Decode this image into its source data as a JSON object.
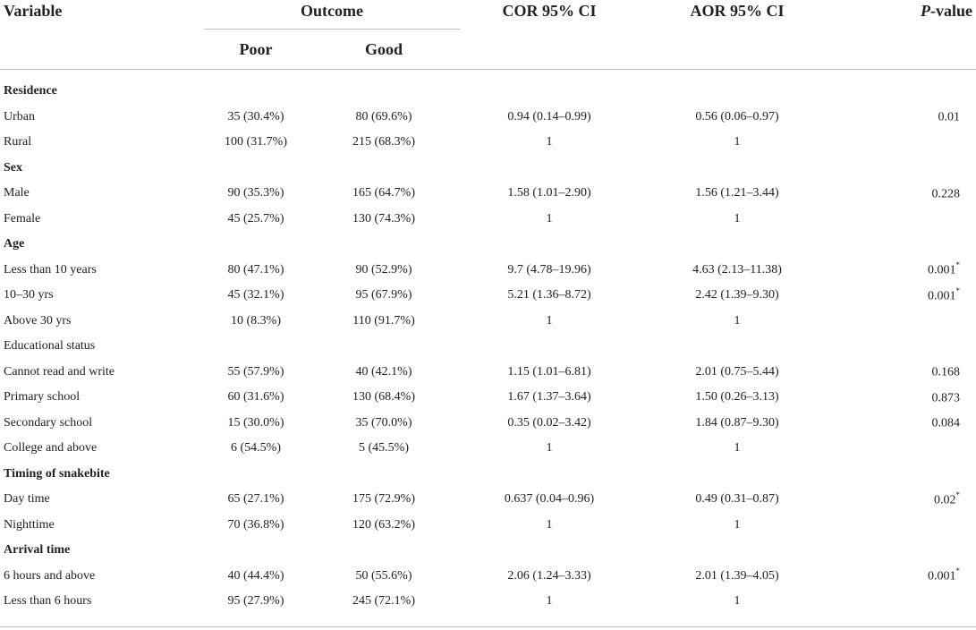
{
  "table": {
    "header": {
      "variable": "Variable",
      "outcome": "Outcome",
      "poor": "Poor",
      "good": "Good",
      "cor": "COR 95% CI",
      "aor": "AOR 95% CI",
      "p_italic": "P",
      "p_rest": "-value"
    },
    "rows": [
      {
        "var": "Residence",
        "poor": "",
        "good": "",
        "cor": "",
        "aor": "",
        "p": "",
        "sup": "",
        "group": true
      },
      {
        "var": "Urban",
        "poor": "35 (30.4%)",
        "good": "80 (69.6%)",
        "cor": "0.94 (0.14–0.99)",
        "aor": "0.56 (0.06–0.97)",
        "p": "0.01",
        "sup": ""
      },
      {
        "var": "Rural",
        "poor": "100 (31.7%)",
        "good": "215 (68.3%)",
        "cor": "1",
        "aor": "1",
        "p": "",
        "sup": ""
      },
      {
        "var": "Sex",
        "poor": "",
        "good": "",
        "cor": "",
        "aor": "",
        "p": "",
        "sup": "",
        "group": true
      },
      {
        "var": "Male",
        "poor": "90 (35.3%)",
        "good": "165 (64.7%)",
        "cor": "1.58 (1.01–2.90)",
        "aor": "1.56 (1.21–3.44)",
        "p": "0.228",
        "sup": ""
      },
      {
        "var": "Female",
        "poor": "45 (25.7%)",
        "good": "130 (74.3%)",
        "cor": "1",
        "aor": "1",
        "p": "",
        "sup": ""
      },
      {
        "var": "Age",
        "poor": "",
        "good": "",
        "cor": "",
        "aor": "",
        "p": "",
        "sup": "",
        "group": true
      },
      {
        "var": "Less than 10 years",
        "poor": "80 (47.1%)",
        "good": "90 (52.9%)",
        "cor": "9.7 (4.78–19.96)",
        "aor": "4.63 (2.13–11.38)",
        "p": "0.001",
        "sup": "*"
      },
      {
        "var": "10–30 yrs",
        "poor": "45 (32.1%)",
        "good": "95 (67.9%)",
        "cor": "5.21 (1.36–8.72)",
        "aor": "2.42 (1.39–9.30)",
        "p": "0.001",
        "sup": "*"
      },
      {
        "var": "Above 30 yrs",
        "poor": "10 (8.3%)",
        "good": "110 (91.7%)",
        "cor": "1",
        "aor": "1",
        "p": "",
        "sup": ""
      },
      {
        "var": "Educational status",
        "poor": "",
        "good": "",
        "cor": "",
        "aor": "",
        "p": "",
        "sup": ""
      },
      {
        "var": "Cannot read and write",
        "poor": "55 (57.9%)",
        "good": "40 (42.1%)",
        "cor": "1.15 (1.01–6.81)",
        "aor": "2.01 (0.75–5.44)",
        "p": "0.168",
        "sup": ""
      },
      {
        "var": "Primary school",
        "poor": "60 (31.6%)",
        "good": "130 (68.4%)",
        "cor": "1.67 (1.37–3.64)",
        "aor": "1.50 (0.26–3.13)",
        "p": "0.873",
        "sup": ""
      },
      {
        "var": "Secondary school",
        "poor": "15 (30.0%)",
        "good": "35 (70.0%)",
        "cor": "0.35 (0.02–3.42)",
        "aor": "1.84 (0.87–9.30)",
        "p": "0.084",
        "sup": ""
      },
      {
        "var": "College and above",
        "poor": "6 (54.5%)",
        "good": "5 (45.5%)",
        "cor": "1",
        "aor": "1",
        "p": "",
        "sup": ""
      },
      {
        "var": "Timing of snakebite",
        "poor": "",
        "good": "",
        "cor": "",
        "aor": "",
        "p": "",
        "sup": "",
        "group": true
      },
      {
        "var": "Day time",
        "poor": "65 (27.1%)",
        "good": "175 (72.9%)",
        "cor": "0.637 (0.04–0.96)",
        "aor": "0.49 (0.31–0.87)",
        "p": "0.02",
        "sup": "*"
      },
      {
        "var": "Nighttime",
        "poor": "70 (36.8%)",
        "good": "120 (63.2%)",
        "cor": "1",
        "aor": "1",
        "p": "",
        "sup": ""
      },
      {
        "var": "Arrival time",
        "poor": "",
        "good": "",
        "cor": "",
        "aor": "",
        "p": "",
        "sup": "",
        "group": true
      },
      {
        "var": "6 hours and above",
        "poor": "40 (44.4%)",
        "good": "50 (55.6%)",
        "cor": "2.06 (1.24–3.33)",
        "aor": "2.01 (1.39–4.05)",
        "p": "0.001",
        "sup": "*"
      },
      {
        "var": "Less than 6 hours",
        "poor": "95 (27.9%)",
        "good": "245 (72.1%)",
        "cor": "1",
        "aor": "1",
        "p": "",
        "sup": ""
      }
    ]
  }
}
